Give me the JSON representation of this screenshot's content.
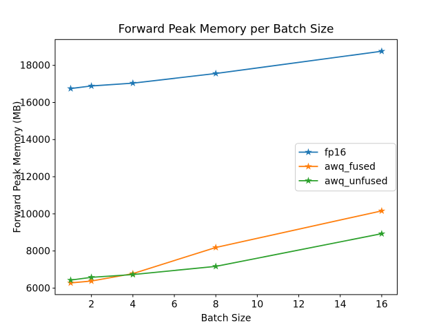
{
  "figure": {
    "background_color": "#ffffff",
    "axis_color": "#000000",
    "legend_border_color": "#cccccc"
  },
  "chart_data": {
    "type": "line",
    "title": "Forward Peak Memory per Batch Size",
    "xlabel": "Batch Size",
    "ylabel": "Forward Peak Memory (MB)",
    "x": [
      1,
      2,
      4,
      8,
      16
    ],
    "series": [
      {
        "name": "fp16",
        "color": "#1f77b4",
        "values": [
          16750,
          16890,
          17040,
          17560,
          18760
        ]
      },
      {
        "name": "awq_fused",
        "color": "#ff7f0e",
        "values": [
          6280,
          6380,
          6780,
          8190,
          10160
        ]
      },
      {
        "name": "awq_unfused",
        "color": "#2ca02c",
        "values": [
          6430,
          6580,
          6730,
          7170,
          8930
        ]
      }
    ],
    "marker": "star",
    "xticks": [
      2,
      4,
      6,
      8,
      10,
      12,
      14,
      16
    ],
    "yticks": [
      6000,
      8000,
      10000,
      12000,
      14000,
      16000,
      18000
    ],
    "xlim": [
      0.25,
      16.75
    ],
    "ylim": [
      5650,
      19390
    ],
    "grid": false,
    "legend_position": "center-right",
    "legend_entries": [
      "fp16",
      "awq_fused",
      "awq_unfused"
    ]
  }
}
